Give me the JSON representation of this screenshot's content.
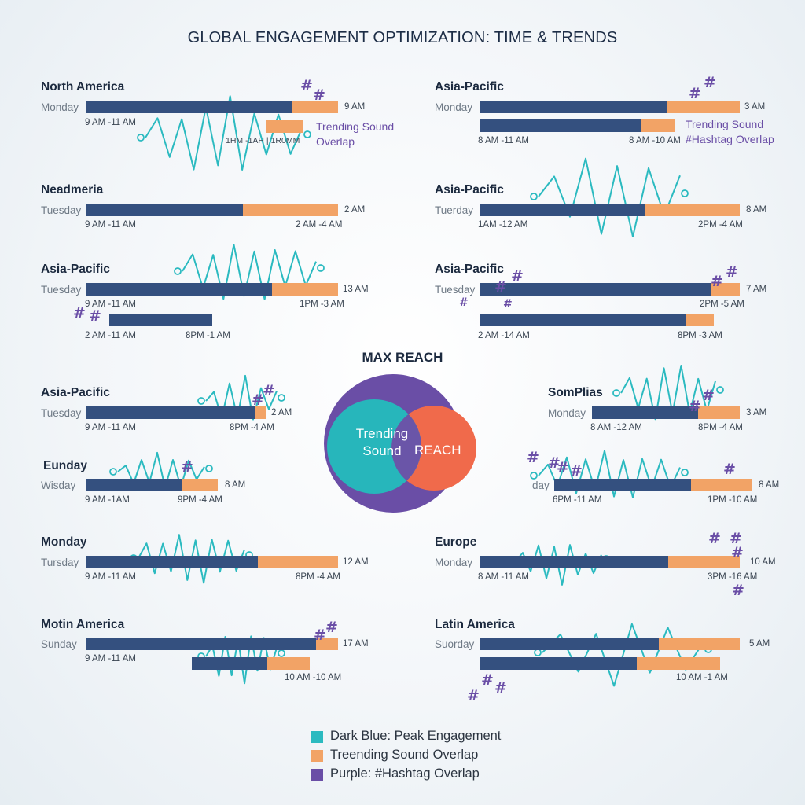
{
  "title": "GLOBAL ENGAGEMENT OPTIMIZATION: TIME & TRENDS",
  "center": {
    "title": "MAX REACH",
    "left_circle_label": "Trending Sound",
    "right_circle_label": "REACH",
    "colors": {
      "outer": "#6a4ea6",
      "left": "#27b6bb",
      "right": "#f06a4b",
      "overlap": "#6a55a8"
    }
  },
  "legend": [
    {
      "label": "Dark Blue: Peak Engagement",
      "color": "#2bbac0"
    },
    {
      "label": "Treending Sound Overlap",
      "color": "#f2a366"
    },
    {
      "label": "Purple: #Hashtag Overlap",
      "color": "#6a4ea6"
    }
  ],
  "colors": {
    "peak": "#34507f",
    "sound": "#f2a366",
    "wave": "#2bbac0",
    "hashtag": "#6a4ea6"
  },
  "chart_data": {
    "type": "bar",
    "title": "GLOBAL ENGAGEMENT OPTIMIZATION: TIME & TRENDS",
    "series_legend": [
      "Peak Engagement",
      "Trending Sound Overlap",
      "Hashtag Overlap"
    ],
    "panels": [
      {
        "region": "North America",
        "day": "Monday",
        "peak": "9 AM -11 AM",
        "end": "9 AM",
        "overlay": "1HM -1AH | 1R0MM",
        "note": "Trending Sound Overlap"
      },
      {
        "region": "Neadmeria",
        "day": "Tuesday",
        "peak": "9 AM -11 AM",
        "sound": "2 AM -4 AM",
        "end": "2 AM"
      },
      {
        "region": "Asia-Pacific",
        "day": "Tuesday",
        "peak": "9 AM -11 AM",
        "sound": "1PM -3 AM",
        "end": "13 AM",
        "peak2": "2 AM -11 AM",
        "sound2": "8PM -1 AM"
      },
      {
        "region": "Asia-Pacific",
        "day": "Tuesday",
        "peak": "9 AM -11 AM",
        "sound": "8PM -4 AM",
        "end": "2 AM"
      },
      {
        "region": "Eunday",
        "day": "Wisday",
        "peak": "9 AM -1AM",
        "sound": "9PM -4 AM",
        "end": "8 AM"
      },
      {
        "region": "Monday",
        "day": "Tursday",
        "peak": "9 AM -11 AM",
        "sound": "8PM -4 AM",
        "end": "12 AM"
      },
      {
        "region": "Motin America",
        "day": "Sunday",
        "peak": "9 AM -11 AM",
        "sound": "10 AM -10 AM",
        "end": "17 AM"
      },
      {
        "region": "Asia-Pacific",
        "day": "Monday",
        "peak": "8 AM -11 AM",
        "sound": "8 AM -10 AM",
        "end": "3 AM",
        "note": "Trending Sound\n#Hashtag Overlap"
      },
      {
        "region": "Asia-Pacific",
        "day": "Tuerday",
        "peak": "1AM -12 AM",
        "sound": "2PM -4 AM",
        "end": "8 AM"
      },
      {
        "region": "Asia-Pacific",
        "day": "Tuesday",
        "peak": "2 AM -14 AM",
        "sound": "2PM -5 AM",
        "end": "7 AM",
        "overlay": "8PM -3 AM",
        "sound2": "8PM -3 AM"
      },
      {
        "region": "SomPlias",
        "day": "Monday",
        "peak": "8 AM -12 AM",
        "sound": "8PM -4 AM",
        "end": "3 AM"
      },
      {
        "region": "",
        "day": "day",
        "peak": "6PM -11 AM",
        "sound": "1PM -10 AM",
        "end": "8 AM"
      },
      {
        "region": "Europe",
        "day": "Monday",
        "peak": "8 AM -11 AM",
        "sound": "3PM -16 AM",
        "end": "10 AM"
      },
      {
        "region": "Latin America",
        "day": "Suorday",
        "peak": "",
        "sound": "10 AM -1 AM",
        "end": "5 AM"
      }
    ]
  }
}
